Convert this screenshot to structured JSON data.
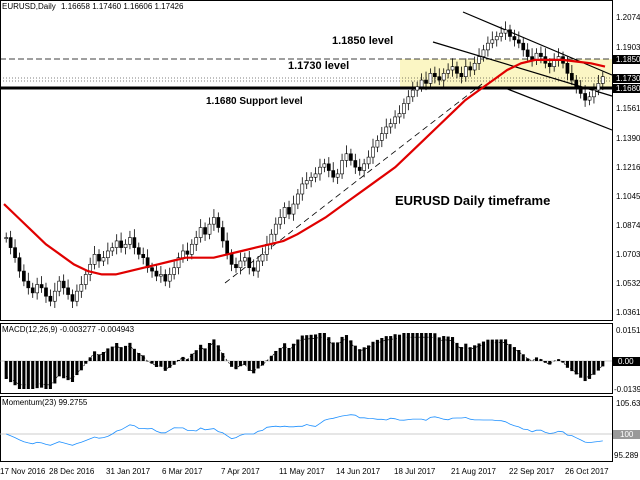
{
  "header": {
    "symbol": "EURUSD,Daily",
    "open": "1.16658",
    "high": "1.17460",
    "low": "1.16606",
    "close": "1.17426"
  },
  "annotations": {
    "level_1850": "1.1850 level",
    "level_1730": "1.1730 level",
    "support_1680": "1.1680 Support level",
    "timeframe": "EURUSD Daily timeframe"
  },
  "price_axis": {
    "ticks": [
      "1.2074",
      "1.1903",
      "1.1850",
      "1.1730",
      "1.1680",
      "1.1561",
      "1.1390",
      "1.1216",
      "1.1045",
      "1.0874",
      "1.0703",
      "1.0532",
      "1.0361"
    ],
    "highlighted": [
      "1.1850",
      "1.1730",
      "1.1680"
    ]
  },
  "macd": {
    "label": "MACD(12,26,9) -0.003277 -0.004943",
    "ticks": [
      "0.0151",
      "0.00",
      "-0.0139"
    ]
  },
  "momentum": {
    "label": "Momentum(23) 99.2755",
    "ticks": [
      "105.63",
      "100",
      "95.289"
    ]
  },
  "time_axis": [
    "17 Nov 2016",
    "28 Dec 2016",
    "31 Jan 2017",
    "6 Mar 2017",
    "7 Apr 2017",
    "11 May 2017",
    "14 Jun 2017",
    "18 Jul 2017",
    "21 Aug 2017",
    "22 Sep 2017",
    "26 Oct 2017"
  ],
  "colors": {
    "candle": "#000000",
    "ma": "#e00000",
    "zone": "#fbf6c4",
    "momentum": "#1e90ff",
    "grid": "#c8c8c8"
  },
  "chart_data": {
    "type": "candlestick",
    "series": [
      {
        "name": "EURUSD Daily price (approx. closes)",
        "values": [
          1.078,
          1.072,
          1.066,
          1.058,
          1.052,
          1.048,
          1.045,
          1.05,
          1.048,
          1.043,
          1.04,
          1.046,
          1.052,
          1.048,
          1.044,
          1.04,
          1.046,
          1.05,
          1.056,
          1.062,
          1.068,
          1.064,
          1.066,
          1.07,
          1.072,
          1.076,
          1.072,
          1.074,
          1.078,
          1.072,
          1.068,
          1.066,
          1.06,
          1.058,
          1.055,
          1.056,
          1.052,
          1.056,
          1.06,
          1.066,
          1.07,
          1.068,
          1.074,
          1.078,
          1.084,
          1.08,
          1.086,
          1.09,
          1.084,
          1.076,
          1.068,
          1.062,
          1.06,
          1.064,
          1.066,
          1.06,
          1.058,
          1.064,
          1.068,
          1.074,
          1.08,
          1.086,
          1.09,
          1.096,
          1.092,
          1.098,
          1.104,
          1.11,
          1.112,
          1.114,
          1.116,
          1.12,
          1.122,
          1.118,
          1.114,
          1.116,
          1.124,
          1.128,
          1.124,
          1.12,
          1.118,
          1.122,
          1.126,
          1.132,
          1.136,
          1.14,
          1.144,
          1.146,
          1.15,
          1.152,
          1.158,
          1.162,
          1.166,
          1.168,
          1.172,
          1.17,
          1.176,
          1.174,
          1.172,
          1.176,
          1.178,
          1.18,
          1.176,
          1.174,
          1.18,
          1.178,
          1.182,
          1.186,
          1.19,
          1.194,
          1.196,
          1.198,
          1.2,
          1.202,
          1.198,
          1.196,
          1.194,
          1.19,
          1.186,
          1.184,
          1.188,
          1.186,
          1.182,
          1.18,
          1.184,
          1.186,
          1.182,
          1.176,
          1.172,
          1.168,
          1.164,
          1.16,
          1.162,
          1.166,
          1.17,
          1.174
        ]
      },
      {
        "name": "Moving average",
        "values": [
          1.098,
          1.09,
          1.082,
          1.074,
          1.068,
          1.062,
          1.058,
          1.056,
          1.056,
          1.058,
          1.06,
          1.062,
          1.064,
          1.066,
          1.066,
          1.066,
          1.068,
          1.07,
          1.072,
          1.074,
          1.076,
          1.08,
          1.085,
          1.09,
          1.096,
          1.102,
          1.108,
          1.114,
          1.12,
          1.128,
          1.136,
          1.144,
          1.152,
          1.16,
          1.166,
          1.172,
          1.178,
          1.182,
          1.184,
          1.184,
          1.184,
          1.183,
          1.182,
          1.18
        ]
      }
    ],
    "horizontal_levels": [
      1.185,
      1.173,
      1.168
    ],
    "ylim": [
      1.03,
      1.215
    ]
  }
}
